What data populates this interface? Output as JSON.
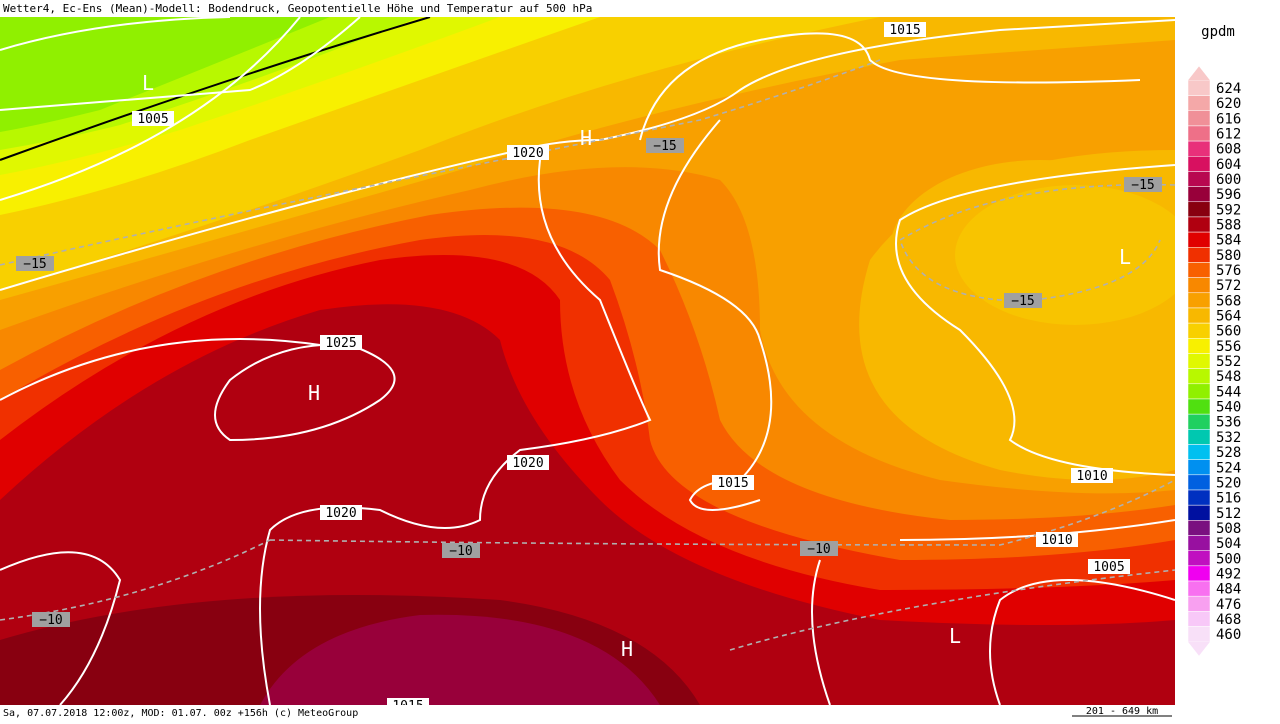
{
  "header": {
    "title": "Wetter4, Ec-Ens (Mean)-Modell: Bodendruck, Geopotentielle Höhe und Temperatur auf 500 hPa"
  },
  "footer": {
    "run": "Sa, 07.07.2018 12:00z, MOD: 01.07. 00z +156h (c) MeteoGroup",
    "scale": "201 - 649 km"
  },
  "legend": {
    "unit": "gpdm",
    "levels": [
      {
        "label": 624,
        "color": "#f8c8c8"
      },
      {
        "label": 620,
        "color": "#f4a8a8"
      },
      {
        "label": 616,
        "color": "#f09098"
      },
      {
        "label": 612,
        "color": "#ee7088"
      },
      {
        "label": 608,
        "color": "#e8307a"
      },
      {
        "label": 604,
        "color": "#d81060"
      },
      {
        "label": 600,
        "color": "#b80850"
      },
      {
        "label": 596,
        "color": "#98003a"
      },
      {
        "label": 592,
        "color": "#880010"
      },
      {
        "label": 588,
        "color": "#b00010"
      },
      {
        "label": 584,
        "color": "#e00000"
      },
      {
        "label": 580,
        "color": "#f03000"
      },
      {
        "label": 576,
        "color": "#f86000"
      },
      {
        "label": 572,
        "color": "#f88800"
      },
      {
        "label": 568,
        "color": "#f8a000"
      },
      {
        "label": 564,
        "color": "#f8b800"
      },
      {
        "label": 560,
        "color": "#f8d000"
      },
      {
        "label": 556,
        "color": "#f8f000"
      },
      {
        "label": 552,
        "color": "#e0f800"
      },
      {
        "label": 548,
        "color": "#b8f800"
      },
      {
        "label": 544,
        "color": "#90f000"
      },
      {
        "label": 540,
        "color": "#50e010"
      },
      {
        "label": 536,
        "color": "#20d060"
      },
      {
        "label": 532,
        "color": "#00c8b0"
      },
      {
        "label": 528,
        "color": "#00c0f0"
      },
      {
        "label": 524,
        "color": "#0090f0"
      },
      {
        "label": 520,
        "color": "#0060e0"
      },
      {
        "label": 516,
        "color": "#0030c0"
      },
      {
        "label": 512,
        "color": "#0010a0"
      },
      {
        "label": 508,
        "color": "#7a1080"
      },
      {
        "label": 504,
        "color": "#9810a0"
      },
      {
        "label": 500,
        "color": "#c010c0"
      },
      {
        "label": 492,
        "color": "#f000f0"
      },
      {
        "label": 484,
        "color": "#f870f0"
      },
      {
        "label": 476,
        "color": "#f8a0f0"
      },
      {
        "label": 468,
        "color": "#f8c8f8"
      },
      {
        "label": 460,
        "color": "#f8e0f8"
      }
    ]
  },
  "map": {
    "isobar_labels": [
      "1005",
      "1020",
      "1015",
      "1025",
      "1020",
      "1015",
      "1010",
      "1020",
      "1010",
      "1005",
      "1015"
    ],
    "temperature_labels": [
      "−15",
      "−15",
      "−15",
      "−15",
      "−10",
      "−10",
      "−10"
    ],
    "pressure_centers": [
      "H",
      "L",
      "L",
      "H",
      "H",
      "L"
    ]
  }
}
